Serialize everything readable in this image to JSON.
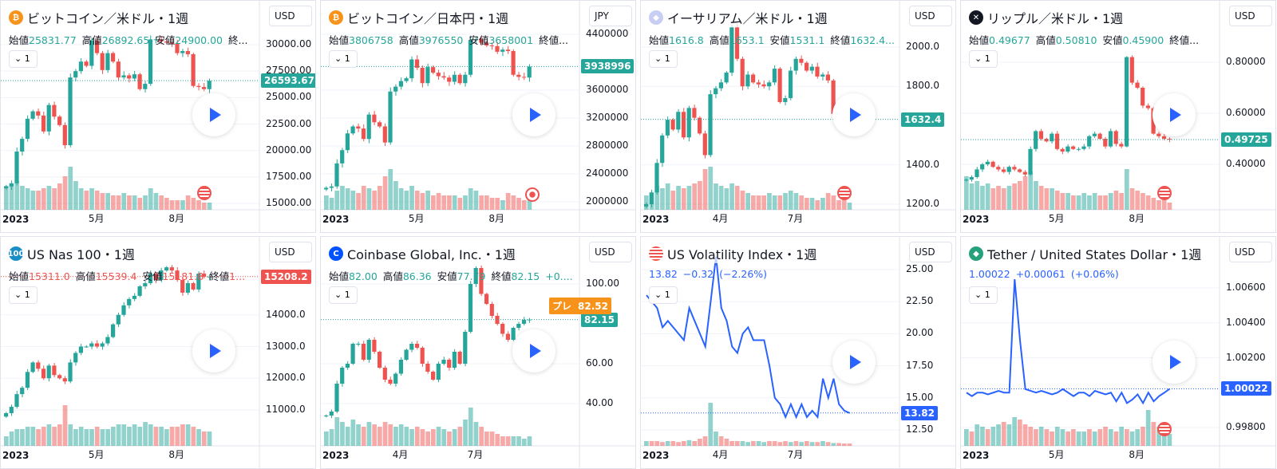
{
  "panels": [
    {
      "title": "ビットコイン／米ドル・1週",
      "icon": "bitcoin-icon",
      "icon_char": "₿",
      "icon_color": "#f7931a",
      "currency": "USD",
      "type": "candle",
      "stat_color": "#26a69a",
      "stats": [
        {
          "l": "始値",
          "v": "25831.77"
        },
        {
          "l": "高値",
          "v": "26892.65"
        },
        {
          "l": "安値",
          "v": "24900.00"
        },
        {
          "l": "終...",
          "v": ""
        }
      ],
      "interval": "1",
      "last": "26593.67",
      "last_color": "#26a69a",
      "ticks": [
        "30000.00",
        "27500.00",
        "25000.00",
        "22500.00",
        "20000.00",
        "17500.00",
        "15000.00"
      ],
      "tick_values": [
        30000,
        27500,
        25000,
        22500,
        20000,
        17500,
        15000
      ],
      "time_labels": [
        {
          "t": "2023",
          "i": 1
        },
        {
          "t": "5月",
          "i": 17
        },
        {
          "t": "8月",
          "i": 32
        }
      ],
      "badge": "flag",
      "closes": [
        16600,
        16900,
        19900,
        21100,
        23000,
        23700,
        23300,
        21800,
        24300,
        23200,
        22400,
        20500,
        26900,
        27500,
        28400,
        28000,
        30400,
        29200,
        27600,
        29200,
        28400,
        26900,
        27100,
        26800,
        27200,
        25800,
        26300,
        30500,
        30500,
        30300,
        30200,
        30100,
        29200,
        29400,
        29100,
        26100,
        26000,
        25800,
        26594
      ],
      "volumes": [
        0.5,
        0.55,
        0.6,
        0.5,
        0.45,
        0.4,
        0.4,
        0.45,
        0.5,
        0.45,
        0.55,
        0.7,
        0.9,
        0.6,
        0.45,
        0.4,
        0.45,
        0.4,
        0.35,
        0.35,
        0.3,
        0.3,
        0.35,
        0.3,
        0.3,
        0.25,
        0.3,
        0.45,
        0.35,
        0.3,
        0.25,
        0.2,
        0.2,
        0.2,
        0.3,
        0.25,
        0.2,
        0.15,
        0.15
      ]
    },
    {
      "title": "ビットコイン／日本円・1週",
      "icon": "bitcoin-icon",
      "icon_char": "₿",
      "icon_color": "#f7931a",
      "currency": "JPY",
      "type": "candle",
      "stat_color": "#26a69a",
      "stats": [
        {
          "l": "始値",
          "v": "3806758"
        },
        {
          "l": "高値",
          "v": "3976550"
        },
        {
          "l": "安値",
          "v": "3658001"
        },
        {
          "l": "終値...",
          "v": ""
        }
      ],
      "interval": "1",
      "last": "3938996",
      "last_color": "#26a69a",
      "ticks": [
        "4400000",
        "3600000",
        "3200000",
        "2800000",
        "2400000",
        "2000000"
      ],
      "tick_values": [
        4400000,
        3600000,
        3200000,
        2800000,
        2400000,
        2000000
      ],
      "time_labels": [
        {
          "t": "2023",
          "i": 1
        },
        {
          "t": "5月",
          "i": 17
        },
        {
          "t": "8月",
          "i": 32
        }
      ],
      "badge": "record",
      "closes": [
        2200000,
        2220000,
        2550000,
        2740000,
        2980000,
        3080000,
        3050000,
        2900000,
        3250000,
        3140000,
        3080000,
        2850000,
        3580000,
        3650000,
        3730000,
        3770000,
        4040000,
        3920000,
        3700000,
        3930000,
        3850000,
        3800000,
        3780000,
        3720000,
        3820000,
        3700000,
        3820000,
        4320000,
        4330000,
        4280000,
        4240000,
        4230000,
        4150000,
        4180000,
        4160000,
        3820000,
        3790000,
        3780000,
        3939000
      ],
      "volumes": [
        0.3,
        0.25,
        0.4,
        0.5,
        0.45,
        0.4,
        0.35,
        0.5,
        0.45,
        0.4,
        0.5,
        0.7,
        0.85,
        0.6,
        0.45,
        0.4,
        0.5,
        0.4,
        0.35,
        0.4,
        0.3,
        0.35,
        0.3,
        0.3,
        0.3,
        0.25,
        0.3,
        0.45,
        0.4,
        0.3,
        0.3,
        0.25,
        0.25,
        0.2,
        0.35,
        0.3,
        0.25,
        0.2,
        0.2
      ]
    },
    {
      "title": "イーサリアム／米ドル・1週",
      "icon": "ethereum-icon",
      "icon_char": "◆",
      "icon_color": "#c7cdf3",
      "currency": "USD",
      "type": "candle",
      "stat_color": "#26a69a",
      "stats": [
        {
          "l": "始値",
          "v": "1616.8"
        },
        {
          "l": "高値",
          "v": "1653.1"
        },
        {
          "l": "安値",
          "v": "1531.1"
        },
        {
          "l": "終値",
          "v": "1632.4..."
        }
      ],
      "interval": "1",
      "last": "1632.4",
      "last_color": "#26a69a",
      "ticks": [
        "2000.0",
        "1800.0",
        "1400.0",
        "1200.0"
      ],
      "tick_values": [
        2000,
        1800,
        1400,
        1200
      ],
      "time_labels": [
        {
          "t": "2023",
          "i": 1
        },
        {
          "t": "4月",
          "i": 14
        },
        {
          "t": "7月",
          "i": 28
        }
      ],
      "badge": "flag",
      "closes": [
        1200,
        1260,
        1410,
        1550,
        1630,
        1580,
        1670,
        1540,
        1690,
        1640,
        1560,
        1450,
        1760,
        1790,
        1820,
        1870,
        2100,
        1940,
        1800,
        1860,
        1820,
        1810,
        1800,
        1820,
        1890,
        1720,
        1740,
        1880,
        1940,
        1920,
        1880,
        1900,
        1850,
        1860,
        1830,
        1660,
        1640,
        1620,
        1632
      ],
      "volumes": [
        0.3,
        0.35,
        0.5,
        0.45,
        0.55,
        0.4,
        0.5,
        0.45,
        0.5,
        0.55,
        0.6,
        0.85,
        0.9,
        0.55,
        0.5,
        0.45,
        0.55,
        0.5,
        0.4,
        0.35,
        0.3,
        0.3,
        0.3,
        0.35,
        0.3,
        0.3,
        0.35,
        0.4,
        0.35,
        0.3,
        0.25,
        0.25,
        0.2,
        0.25,
        0.35,
        0.3,
        0.2,
        0.2,
        0.15
      ]
    },
    {
      "title": "リップル／米ドル・1週",
      "icon": "xrp-icon",
      "icon_char": "✕",
      "icon_color": "#131722",
      "currency": "USD",
      "type": "candle",
      "stat_color": "#26a69a",
      "stats": [
        {
          "l": "始値",
          "v": "0.49677"
        },
        {
          "l": "高値",
          "v": "0.50810"
        },
        {
          "l": "安値",
          "v": "0.45900"
        },
        {
          "l": "終値...",
          "v": ""
        }
      ],
      "interval": "1",
      "last": "0.49725",
      "last_color": "#26a69a",
      "ticks": [
        "0.80000",
        "0.60000",
        "0.40000"
      ],
      "tick_values": [
        0.8,
        0.6,
        0.4
      ],
      "time_labels": [
        {
          "t": "2023",
          "i": 1
        },
        {
          "t": "5月",
          "i": 17
        },
        {
          "t": "8月",
          "i": 32
        }
      ],
      "badge": "flag",
      "closes": [
        0.34,
        0.35,
        0.38,
        0.4,
        0.41,
        0.39,
        0.38,
        0.37,
        0.39,
        0.38,
        0.37,
        0.36,
        0.46,
        0.53,
        0.5,
        0.49,
        0.52,
        0.46,
        0.45,
        0.47,
        0.46,
        0.46,
        0.47,
        0.51,
        0.52,
        0.5,
        0.47,
        0.53,
        0.48,
        0.47,
        0.82,
        0.72,
        0.7,
        0.63,
        0.62,
        0.52,
        0.51,
        0.5,
        0.497
      ],
      "volumes": [
        0.7,
        0.55,
        0.6,
        0.5,
        0.55,
        0.45,
        0.5,
        0.45,
        0.5,
        0.55,
        0.6,
        0.7,
        0.8,
        0.6,
        0.5,
        0.45,
        0.45,
        0.4,
        0.35,
        0.35,
        0.3,
        0.3,
        0.35,
        0.3,
        0.35,
        0.3,
        0.3,
        0.35,
        0.4,
        0.35,
        0.85,
        0.45,
        0.4,
        0.35,
        0.3,
        0.25,
        0.2,
        0.2,
        0.15
      ]
    },
    {
      "title": "US Nas 100・1週",
      "icon": "nasdaq-icon",
      "icon_char": "100",
      "icon_color": "#1a8fc7",
      "currency": "USD",
      "type": "candle",
      "stat_color": "#ef5350",
      "stats": [
        {
          "l": "始値",
          "v": "15311.0"
        },
        {
          "l": "高値",
          "v": "15539.4"
        },
        {
          "l": "安値",
          "v": "15181.8"
        },
        {
          "l": "終値",
          "v": "1..."
        }
      ],
      "interval": "1",
      "last": "15208.2",
      "last_color": "#ef5350",
      "ticks": [
        "14000.0",
        "13000.0",
        "12000.0",
        "11000.0"
      ],
      "tick_values": [
        14000,
        13000,
        12000,
        11000
      ],
      "time_labels": [
        {
          "t": "2023",
          "i": 1
        },
        {
          "t": "5月",
          "i": 17
        },
        {
          "t": "8月",
          "i": 32
        }
      ],
      "badge": "",
      "closes": [
        10900,
        11100,
        11500,
        11700,
        12200,
        12500,
        12300,
        12000,
        12400,
        12100,
        12000,
        11900,
        12500,
        12800,
        13000,
        13000,
        13100,
        13000,
        13100,
        13300,
        13700,
        14000,
        14300,
        14500,
        14600,
        14900,
        15000,
        15300,
        15100,
        15400,
        15500,
        15400,
        15100,
        14700,
        15000,
        14800,
        15300,
        15200,
        15208
      ],
      "volumes": [
        0.2,
        0.3,
        0.35,
        0.35,
        0.4,
        0.4,
        0.35,
        0.4,
        0.45,
        0.4,
        0.45,
        0.85,
        0.45,
        0.35,
        0.4,
        0.35,
        0.35,
        0.4,
        0.35,
        0.35,
        0.4,
        0.45,
        0.45,
        0.4,
        0.45,
        0.4,
        0.5,
        0.45,
        0.4,
        0.4,
        0.35,
        0.4,
        0.4,
        0.45,
        0.45,
        0.4,
        0.35,
        0.3,
        0.3
      ]
    },
    {
      "title": "Coinbase Global, Inc.・1週",
      "icon": "coinbase-icon",
      "icon_char": "C",
      "icon_color": "#0052ff",
      "currency": "USD",
      "type": "candle",
      "stat_color": "#26a69a",
      "stats": [
        {
          "l": "始値",
          "v": "82.00"
        },
        {
          "l": "高値",
          "v": "86.36"
        },
        {
          "l": "安値",
          "v": "77.79"
        },
        {
          "l": "終値",
          "v": "82.15"
        },
        {
          "l": "",
          "v": "+0...."
        }
      ],
      "interval": "1",
      "last": "82.15",
      "last_color": "#26a69a",
      "pre_label": "プレ",
      "pre_value": "82.52",
      "pre_color": "#f7931a",
      "ticks": [
        "100.00",
        "60.00",
        "40.00"
      ],
      "tick_values": [
        100,
        60,
        40
      ],
      "time_labels": [
        {
          "t": "2023",
          "i": 1
        },
        {
          "t": "4月",
          "i": 14
        },
        {
          "t": "7月",
          "i": 28
        }
      ],
      "badge": "",
      "closes": [
        34,
        36,
        50,
        58,
        60,
        70,
        70,
        62,
        72,
        66,
        58,
        52,
        50,
        55,
        62,
        67,
        70,
        68,
        60,
        56,
        52,
        60,
        62,
        58,
        66,
        60,
        76,
        100,
        108,
        95,
        90,
        84,
        80,
        75,
        72,
        78,
        80,
        82,
        82.15
      ],
      "volumes": [
        0.3,
        0.35,
        0.6,
        0.5,
        0.4,
        0.55,
        0.45,
        0.4,
        0.5,
        0.45,
        0.4,
        0.5,
        0.45,
        0.4,
        0.45,
        0.4,
        0.35,
        0.4,
        0.35,
        0.3,
        0.35,
        0.4,
        0.35,
        0.3,
        0.35,
        0.4,
        0.55,
        0.8,
        0.5,
        0.4,
        0.3,
        0.3,
        0.25,
        0.2,
        0.2,
        0.2,
        0.2,
        0.15,
        0.2
      ]
    },
    {
      "title": "US Volatility Index・1週",
      "icon": "us-flag-icon",
      "icon_char": "",
      "icon_color": "#ef5350",
      "currency": "USD",
      "type": "line",
      "stat_color": "#2962ff",
      "stats": [
        {
          "l": "",
          "v": "13.82"
        },
        {
          "l": "",
          "v": "−0.32"
        },
        {
          "l": "",
          "v": "(−2.26%)"
        }
      ],
      "interval": "1",
      "last": "13.82",
      "last_color": "#2962ff",
      "ticks": [
        "25.00",
        "22.50",
        "20.00",
        "17.50",
        "15.00",
        "12.50"
      ],
      "tick_values": [
        25,
        22.5,
        20,
        17.5,
        15,
        12.5
      ],
      "time_labels": [
        {
          "t": "2023",
          "i": 1
        },
        {
          "t": "4月",
          "i": 14
        },
        {
          "t": "7月",
          "i": 28
        }
      ],
      "badge": "",
      "closes": [
        23,
        22.5,
        22,
        20.5,
        21,
        20.5,
        20,
        19.5,
        22,
        21,
        20,
        19,
        22.5,
        26,
        22,
        21,
        19,
        18.5,
        20,
        20.5,
        19.5,
        19.5,
        19.5,
        17.5,
        15,
        14.5,
        13.5,
        14.5,
        13.5,
        14.5,
        13.5,
        14,
        13.5,
        16.5,
        15,
        16.5,
        14.5,
        14,
        13.82
      ],
      "volumes": [
        0.1,
        0.1,
        0.1,
        0.08,
        0.1,
        0.1,
        0.08,
        0.1,
        0.12,
        0.1,
        0.15,
        0.2,
        0.9,
        0.3,
        0.2,
        0.15,
        0.1,
        0.1,
        0.1,
        0.08,
        0.1,
        0.1,
        0.08,
        0.1,
        0.1,
        0.08,
        0.1,
        0.08,
        0.1,
        0.08,
        0.1,
        0.08,
        0.08,
        0.1,
        0.08,
        0.06,
        0.06,
        0.05,
        0.05
      ]
    },
    {
      "title": "Tether / United States Dollar・1週",
      "icon": "tether-icon",
      "icon_char": "◆",
      "icon_color": "#26a17b",
      "currency": "USD",
      "type": "line",
      "stat_color": "#2962ff",
      "stats": [
        {
          "l": "",
          "v": "1.00022"
        },
        {
          "l": "",
          "v": "+0.00061"
        },
        {
          "l": "",
          "v": "(+0.06%)"
        }
      ],
      "interval": "1",
      "last": "1.00022",
      "last_color": "#2962ff",
      "ticks": [
        "1.00600",
        "1.00400",
        "1.00200",
        "0.99800"
      ],
      "tick_values": [
        1.006,
        1.004,
        1.002,
        0.998
      ],
      "time_labels": [
        {
          "t": "2023",
          "i": 1
        },
        {
          "t": "5月",
          "i": 17
        },
        {
          "t": "8月",
          "i": 32
        }
      ],
      "badge": "flag",
      "closes": [
        1.0,
        0.9998,
        1.0,
        1.0,
        0.9999,
        1.0,
        1.0001,
        1.0,
        1.0,
        1.0065,
        1.003,
        1.0002,
        1.0001,
        1.0,
        1.0001,
        1.0,
        0.9999,
        1.0,
        1.0002,
        1.0,
        0.9998,
        1.0,
        1.0,
        0.9998,
        1.0001,
        1.0,
        0.9999,
        1.0,
        0.9995,
        1.0,
        0.9994,
        0.9996,
        0.9999,
        0.9994,
        1.0,
        0.9995,
        0.9998,
        1.0,
        1.00022
      ],
      "volumes": [
        0.35,
        0.3,
        0.45,
        0.4,
        0.35,
        0.4,
        0.45,
        0.5,
        0.45,
        0.6,
        0.55,
        0.45,
        0.4,
        0.35,
        0.4,
        0.35,
        0.3,
        0.4,
        0.35,
        0.3,
        0.35,
        0.3,
        0.3,
        0.35,
        0.3,
        0.35,
        0.4,
        0.35,
        0.3,
        0.4,
        0.35,
        0.3,
        0.35,
        0.4,
        0.75,
        0.5,
        0.4,
        0.3,
        0.25
      ]
    }
  ]
}
